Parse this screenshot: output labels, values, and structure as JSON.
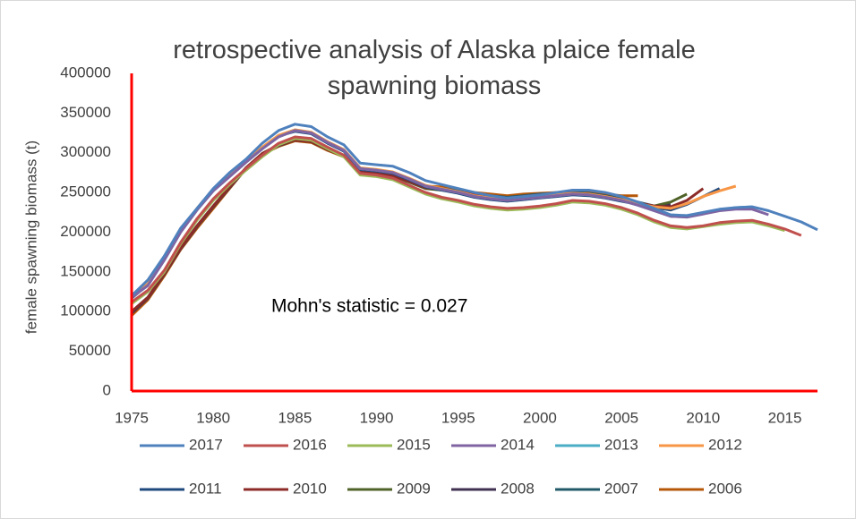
{
  "chart_data": {
    "type": "line",
    "title": "retrospective analysis of Alaska plaice female spawning biomass",
    "y_label": "female spawning biomass (t)",
    "annotation": "Mohn's statistic = 0.027",
    "axis_color": "#ff0000",
    "x": [
      1975,
      1976,
      1977,
      1978,
      1979,
      1980,
      1981,
      1982,
      1983,
      1984,
      1985,
      1986,
      1987,
      1988,
      1989,
      1990,
      1991,
      1992,
      1993,
      1994,
      1995,
      1996,
      1997,
      1998,
      1999,
      2000,
      2001,
      2002,
      2003,
      2004,
      2005,
      2006,
      2007,
      2008,
      2009,
      2010,
      2011,
      2012,
      2013,
      2014,
      2015,
      2016,
      2017
    ],
    "xlim": [
      1975,
      2017
    ],
    "xticks": [
      1975,
      1980,
      1985,
      1990,
      1995,
      2000,
      2005,
      2010,
      2015
    ],
    "ylim": [
      0,
      400000
    ],
    "yticks": [
      0,
      50000,
      100000,
      150000,
      200000,
      250000,
      300000,
      350000,
      400000
    ],
    "series": [
      {
        "name": "2017",
        "color": "#4f81bd",
        "values": [
          120000,
          140000,
          170000,
          205000,
          230000,
          255000,
          275000,
          292000,
          312000,
          328000,
          336000,
          333000,
          320000,
          310000,
          287000,
          285000,
          283000,
          275000,
          265000,
          260000,
          255000,
          250000,
          246000,
          243000,
          245000,
          247000,
          250000,
          253000,
          253000,
          250000,
          245000,
          238000,
          230000,
          222000,
          221000,
          225000,
          229000,
          231000,
          232000,
          227000,
          220000,
          213000,
          203000
        ]
      },
      {
        "name": "2016",
        "color": "#c0504d",
        "values": [
          112000,
          127000,
          152000,
          187000,
          217000,
          242000,
          262000,
          280000,
          297000,
          312000,
          320000,
          318000,
          307000,
          297000,
          274000,
          272000,
          268000,
          259000,
          250000,
          244000,
          240000,
          235000,
          232000,
          230000,
          231000,
          233000,
          236000,
          240000,
          239000,
          236000,
          231000,
          224000,
          215000,
          208000,
          206000,
          208000,
          212000,
          214000,
          215000,
          210000,
          204000,
          196000,
          null
        ]
      },
      {
        "name": "2015",
        "color": "#9bbb59",
        "values": [
          110000,
          125000,
          150000,
          185000,
          215000,
          240000,
          260000,
          278000,
          295000,
          310000,
          318000,
          316000,
          305000,
          295000,
          272000,
          270000,
          266000,
          257000,
          248000,
          242000,
          238000,
          233000,
          230000,
          228000,
          229000,
          231000,
          234000,
          238000,
          237000,
          234000,
          229000,
          222000,
          213000,
          206000,
          204000,
          207000,
          210000,
          212000,
          213000,
          208000,
          202000,
          null,
          null
        ]
      },
      {
        "name": "2014",
        "color": "#8064a2",
        "values": [
          118000,
          133000,
          165000,
          200000,
          228000,
          252000,
          270000,
          288000,
          305000,
          320000,
          328000,
          325000,
          313000,
          303000,
          280000,
          278000,
          275000,
          267000,
          258000,
          254000,
          250000,
          245000,
          242000,
          240000,
          242000,
          244000,
          246000,
          248000,
          247000,
          244000,
          240000,
          234000,
          227000,
          220000,
          219000,
          223000,
          227000,
          229000,
          229000,
          222000,
          null,
          null,
          null
        ]
      },
      {
        "name": "2013",
        "color": "#4bacc6",
        "values": [
          118000,
          133000,
          165000,
          200000,
          228000,
          252000,
          270000,
          288000,
          305000,
          320000,
          328000,
          325000,
          313000,
          303000,
          280000,
          278000,
          275000,
          267000,
          258000,
          254000,
          250000,
          245000,
          242000,
          240000,
          242000,
          244000,
          246000,
          248000,
          247000,
          244000,
          240000,
          234000,
          227000,
          220000,
          219000,
          223000,
          228000,
          231000,
          232000,
          null,
          null,
          null,
          null
        ]
      },
      {
        "name": "2012",
        "color": "#f79646",
        "values": [
          118000,
          135000,
          167000,
          202000,
          230000,
          254000,
          272000,
          290000,
          307000,
          322000,
          329000,
          326000,
          314000,
          304000,
          281000,
          279000,
          276000,
          268000,
          259000,
          255000,
          251000,
          246000,
          243000,
          241000,
          243000,
          245000,
          247000,
          249000,
          248000,
          245000,
          241000,
          236000,
          232000,
          230000,
          236000,
          245000,
          252000,
          258000,
          null,
          null,
          null,
          null,
          null
        ]
      },
      {
        "name": "2011",
        "color": "#1f497d",
        "values": [
          117000,
          134000,
          166000,
          201000,
          229000,
          253000,
          271000,
          289000,
          306000,
          321000,
          327000,
          324000,
          312000,
          302000,
          279000,
          277000,
          274000,
          266000,
          257000,
          253000,
          249000,
          244000,
          241000,
          239000,
          241000,
          243000,
          245000,
          247000,
          246000,
          243000,
          239000,
          235000,
          231000,
          228000,
          235000,
          245000,
          255000,
          null,
          null,
          null,
          null,
          null,
          null
        ]
      },
      {
        "name": "2010",
        "color": "#8c2b28",
        "values": [
          100000,
          118000,
          148000,
          180000,
          208000,
          233000,
          257000,
          281000,
          299000,
          310000,
          316000,
          314000,
          304000,
          296000,
          276000,
          274000,
          271000,
          264000,
          256000,
          254000,
          251000,
          247000,
          244000,
          242000,
          245000,
          247000,
          248000,
          249000,
          248000,
          245000,
          241000,
          237000,
          233000,
          232000,
          240000,
          255000,
          null,
          null,
          null,
          null,
          null,
          null,
          null
        ]
      },
      {
        "name": "2009",
        "color": "#4f6228",
        "values": [
          100000,
          118000,
          148000,
          180000,
          208000,
          233000,
          257000,
          281000,
          299000,
          310000,
          316000,
          314000,
          304000,
          296000,
          275000,
          273000,
          270000,
          263000,
          255000,
          253000,
          250000,
          246000,
          243000,
          241000,
          244000,
          246000,
          247000,
          248000,
          247000,
          244000,
          240000,
          236000,
          233000,
          238000,
          248000,
          null,
          null,
          null,
          null,
          null,
          null,
          null,
          null
        ]
      },
      {
        "name": "2008",
        "color": "#403151",
        "values": [
          98000,
          117000,
          147000,
          179000,
          207000,
          232000,
          256000,
          280000,
          298000,
          309000,
          316000,
          314000,
          304000,
          296000,
          276000,
          274000,
          271000,
          264000,
          256000,
          254000,
          251000,
          247000,
          245000,
          243000,
          245000,
          247000,
          248000,
          249000,
          248000,
          245000,
          241000,
          237000,
          232000,
          235000,
          null,
          null,
          null,
          null,
          null,
          null,
          null,
          null,
          null
        ]
      },
      {
        "name": "2007",
        "color": "#215968",
        "values": [
          99000,
          118000,
          148000,
          180000,
          208000,
          233000,
          257000,
          281000,
          299000,
          310000,
          316000,
          314000,
          304000,
          296000,
          277000,
          275000,
          272000,
          265000,
          257000,
          255000,
          252000,
          248000,
          246000,
          244000,
          246000,
          248000,
          249000,
          250000,
          249000,
          246000,
          242000,
          238000,
          233000,
          null,
          null,
          null,
          null,
          null,
          null,
          null,
          null,
          null,
          null
        ]
      },
      {
        "name": "2006",
        "color": "#b65708",
        "values": [
          95000,
          115000,
          145000,
          178000,
          205000,
          230000,
          255000,
          280000,
          298000,
          308000,
          315000,
          313000,
          303000,
          295000,
          277000,
          275000,
          272000,
          266000,
          258000,
          257000,
          254000,
          250000,
          248000,
          246000,
          248000,
          249000,
          250000,
          251000,
          250000,
          248000,
          246000,
          246000,
          null,
          null,
          null,
          null,
          null,
          null,
          null,
          null,
          null,
          null,
          null
        ]
      }
    ]
  }
}
